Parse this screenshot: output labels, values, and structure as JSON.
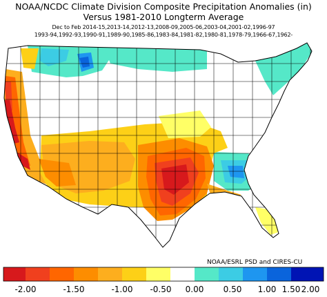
{
  "title_line1": "NOAA/NCDC Climate Division Composite Precipitation Anomalies (in)",
  "title_line2": "Versus 1981-2010 Longterm Average",
  "seasons_line1": "Dec to Feb  2014-15,2013-14,2012-13,2008-09,2005-06,2003-04,2001-02,1996-97",
  "seasons_line2": "1993-94,1992-93,1990-91,1989-90,1985-86,1983-84,1981-82,1980-81,1978-79,1966-67,1962-",
  "credit": "NOAA/ESRL PSD and CIRES-CU",
  "colors": {
    "c_m2": "#d7191c",
    "c_m175": "#f0401e",
    "c_m150": "#ff6600",
    "c_m125": "#fd8d00",
    "c_m100": "#fdae1e",
    "c_m075": "#fdd017",
    "c_m050": "#ffff66",
    "c_0": "#ffffff",
    "c_p050": "#55e8c8",
    "c_p075": "#3ccce4",
    "c_p100": "#1e96f0",
    "c_p150": "#0a64dc",
    "c_p200": "#0014b4"
  },
  "legend": {
    "labels": [
      "-2.00",
      "-1.50",
      "-1.00",
      "-0.50",
      "0.00",
      "0.50",
      "1.00",
      "1.50",
      "2.00"
    ]
  }
}
